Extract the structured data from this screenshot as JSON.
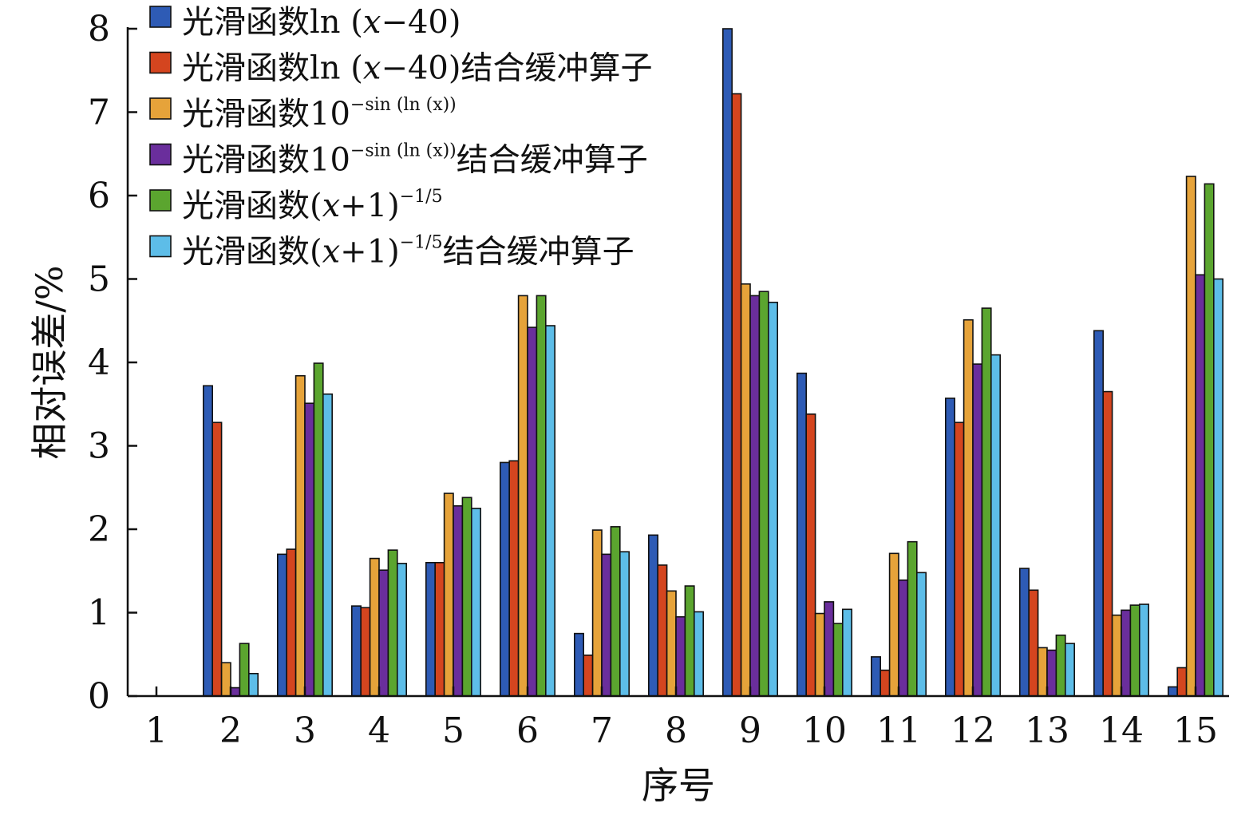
{
  "chart_data": {
    "type": "bar",
    "title": "",
    "xlabel": "序号",
    "ylabel": "相对误差/%",
    "ylim": [
      0,
      8
    ],
    "yticks": [
      0,
      1,
      2,
      3,
      4,
      5,
      6,
      7,
      8
    ],
    "grid": false,
    "legend_position": "top-left",
    "categories": [
      "1",
      "2",
      "3",
      "4",
      "5",
      "6",
      "7",
      "8",
      "9",
      "10",
      "11",
      "12",
      "13",
      "14",
      "15"
    ],
    "series": [
      {
        "name": "光滑函数ln (x−40)",
        "legend": {
          "main": "光滑函数ln (",
          "italic": "x",
          "rest": "−40)",
          "sup": "",
          "suffix": ""
        },
        "color": "#2E5BB5",
        "values": [
          0,
          3.72,
          1.7,
          1.08,
          1.6,
          2.8,
          0.75,
          1.93,
          8.0,
          3.87,
          0.47,
          3.57,
          1.53,
          4.38,
          0.11
        ]
      },
      {
        "name": "光滑函数ln (x−40)结合缓冲算子",
        "legend": {
          "main": "光滑函数ln (",
          "italic": "x",
          "rest": "−40)",
          "sup": "",
          "suffix": "结合缓冲算子"
        },
        "color": "#D4451F",
        "values": [
          0,
          3.28,
          1.76,
          1.06,
          1.6,
          2.82,
          0.49,
          1.57,
          7.22,
          3.38,
          0.31,
          3.28,
          1.27,
          3.65,
          0.34
        ]
      },
      {
        "name": "光滑函数10−sin (ln (x))",
        "legend": {
          "main": "光滑函数10",
          "italic": "",
          "rest": "",
          "sup": "−sin (ln (x))",
          "suffix": ""
        },
        "color": "#E6A33A",
        "values": [
          0,
          0.4,
          3.84,
          1.65,
          2.43,
          4.8,
          1.99,
          1.26,
          4.94,
          0.99,
          1.71,
          4.51,
          0.58,
          0.97,
          6.23
        ]
      },
      {
        "name": "光滑函数10−sin (ln (x))结合缓冲算子",
        "legend": {
          "main": "光滑函数10",
          "italic": "",
          "rest": "",
          "sup": "−sin (ln (x))",
          "suffix": "结合缓冲算子"
        },
        "color": "#6A2E9C",
        "values": [
          0,
          0.1,
          3.51,
          1.51,
          2.28,
          4.42,
          1.7,
          0.95,
          4.8,
          1.13,
          1.39,
          3.98,
          0.55,
          1.03,
          5.05
        ]
      },
      {
        "name": "光滑函数(x+1)−1/5",
        "legend": {
          "main": "光滑函数(",
          "italic": "x",
          "rest": "+1)",
          "sup": "−1/5",
          "suffix": ""
        },
        "color": "#5BA52F",
        "values": [
          0,
          0.63,
          3.99,
          1.75,
          2.38,
          4.8,
          2.03,
          1.32,
          4.85,
          0.87,
          1.85,
          4.65,
          0.73,
          1.09,
          6.14
        ]
      },
      {
        "name": "光滑函数(x+1)−1/5结合缓冲算子",
        "legend": {
          "main": "光滑函数(",
          "italic": "x",
          "rest": "+1)",
          "sup": "−1/5",
          "suffix": "结合缓冲算子"
        },
        "color": "#5DBDE8",
        "values": [
          0,
          0.27,
          3.62,
          1.59,
          2.25,
          4.44,
          1.73,
          1.01,
          4.72,
          1.04,
          1.48,
          4.09,
          0.63,
          1.1,
          5.0
        ]
      }
    ]
  }
}
